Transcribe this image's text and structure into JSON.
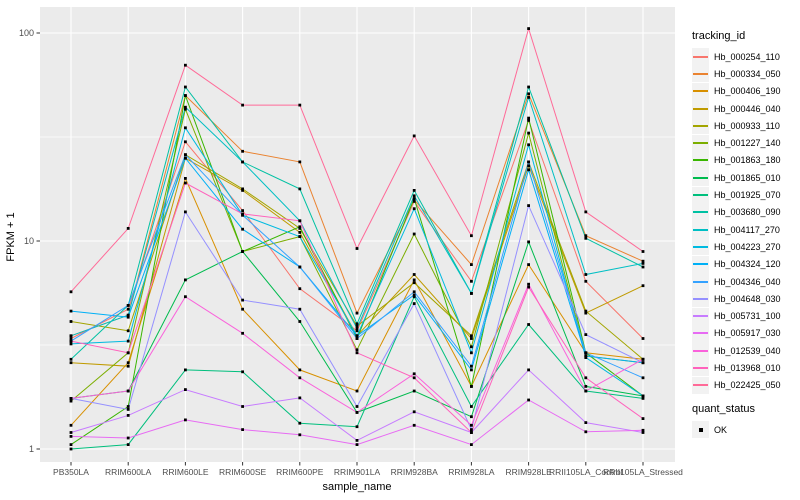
{
  "chart_data": {
    "type": "line",
    "title": "",
    "xlabel": "sample_name",
    "ylabel": "FPKM + 1",
    "y_scale": "log10",
    "y_ticks": [
      "1",
      "10",
      "100"
    ],
    "y_tick_values": [
      1,
      10,
      100
    ],
    "y_minor_values": [
      3.1623,
      31.623
    ],
    "ylim": [
      0.87,
      132
    ],
    "grid": true,
    "legend_position": "right",
    "legend_title": "tracking_id",
    "point_marker": {
      "shape": "square",
      "color": "#000000"
    },
    "quant_legend": {
      "title": "quant_status",
      "items": [
        {
          "label": "OK",
          "marker": "black-square"
        }
      ]
    },
    "colors": {
      "panel_bg": "#EBEBEB",
      "grid": "#FFFFFF",
      "tick_text": "#4D4D4D",
      "axis_text": "#000000",
      "legend_key_bg": "#F2F2F2",
      "tick_mark": "#333333"
    },
    "categories": [
      "PB350LA",
      "RRIM600LA",
      "RRIM600LE",
      "RRIM600SE",
      "RRIM600PE",
      "RRIM901LA",
      "RRIM928BA",
      "RRIM928LA",
      "RRIM928LE",
      "RRII105LA_Control",
      "RRII105LA_Stressed"
    ],
    "series": [
      {
        "name": "Hb_000254_110",
        "color": "#F8766D",
        "values": [
          3.4,
          4.7,
          30,
          14,
          5.9,
          3.7,
          15.5,
          6.4,
          38,
          6.4,
          3.4
        ]
      },
      {
        "name": "Hb_000334_050",
        "color": "#EA8331",
        "values": [
          3.5,
          4.4,
          50,
          27,
          24,
          4.5,
          15.8,
          7.7,
          51,
          10.6,
          8.0
        ]
      },
      {
        "name": "Hb_000406_190",
        "color": "#D89000",
        "values": [
          1.3,
          2.6,
          20,
          4.7,
          2.4,
          1.9,
          6.5,
          2.0,
          7.7,
          2.9,
          2.7
        ]
      },
      {
        "name": "Hb_000446_040",
        "color": "#C09B00",
        "values": [
          2.6,
          2.5,
          25,
          17.5,
          11,
          3.5,
          6.9,
          3.4,
          23,
          4.5,
          6.1
        ]
      },
      {
        "name": "Hb_000933_110",
        "color": "#A3A500",
        "values": [
          4.1,
          3.7,
          26,
          17.8,
          11.5,
          3.9,
          6.3,
          3.5,
          24,
          4.6,
          2.7
        ]
      },
      {
        "name": "Hb_001227_140",
        "color": "#7CAE00",
        "values": [
          1.7,
          2.9,
          43,
          8.9,
          10.5,
          3.0,
          10.8,
          3.1,
          33,
          2.8,
          2.6
        ]
      },
      {
        "name": "Hb_001863_180",
        "color": "#39B600",
        "values": [
          1.05,
          1.6,
          50,
          8.9,
          11.7,
          3.4,
          16,
          2.0,
          39,
          2.9,
          1.8
        ]
      },
      {
        "name": "Hb_001865_010",
        "color": "#00BB4E",
        "values": [
          1.75,
          1.9,
          6.5,
          8.9,
          4.1,
          1.5,
          1.9,
          1.43,
          9.9,
          2.0,
          1.8
        ]
      },
      {
        "name": "Hb_001925_070",
        "color": "#00BF7D",
        "values": [
          1.0,
          1.05,
          2.4,
          2.35,
          1.33,
          1.28,
          5.4,
          1.6,
          3.97,
          1.9,
          1.75
        ]
      },
      {
        "name": "Hb_003680_090",
        "color": "#00C1A3",
        "values": [
          2.7,
          4.9,
          55,
          24,
          17.8,
          4.0,
          17.5,
          5.6,
          55,
          10.3,
          7.5
        ]
      },
      {
        "name": "Hb_004117_270",
        "color": "#00BFC4",
        "values": [
          3.5,
          4.4,
          44,
          24,
          12.5,
          3.8,
          16.5,
          5.6,
          49,
          6.9,
          7.8
        ]
      },
      {
        "name": "Hb_004223_270",
        "color": "#00BAE0",
        "values": [
          3.2,
          3.3,
          35,
          13.3,
          10.5,
          3.5,
          14.3,
          2.9,
          29,
          2.75,
          1.8
        ]
      },
      {
        "name": "Hb_004324_120",
        "color": "#00B0F6",
        "values": [
          4.6,
          4.3,
          25,
          11.4,
          7.5,
          3.5,
          5.5,
          2.4,
          22,
          2.8,
          2.6
        ]
      },
      {
        "name": "Hb_004346_040",
        "color": "#35A2FF",
        "values": [
          3.3,
          4.9,
          26,
          13.3,
          7.5,
          3.4,
          5.7,
          2.5,
          24,
          2.9,
          2.2
        ]
      },
      {
        "name": "Hb_004648_030",
        "color": "#9590FF",
        "values": [
          1.75,
          1.55,
          13.8,
          5.2,
          4.7,
          1.6,
          5.0,
          1.24,
          14.8,
          3.55,
          2.6
        ]
      },
      {
        "name": "Hb_005731_100",
        "color": "#C77CFF",
        "values": [
          1.2,
          1.45,
          1.93,
          1.6,
          1.76,
          1.1,
          1.51,
          1.2,
          2.4,
          1.34,
          1.2
        ]
      },
      {
        "name": "Hb_005917_030",
        "color": "#E76BF3",
        "values": [
          1.15,
          1.13,
          1.38,
          1.24,
          1.17,
          1.05,
          1.3,
          1.05,
          1.72,
          1.21,
          1.23
        ]
      },
      {
        "name": "Hb_012539_040",
        "color": "#FA62DB",
        "values": [
          1.75,
          1.9,
          5.4,
          3.6,
          2.2,
          1.5,
          2.3,
          1.3,
          6.2,
          1.9,
          2.7
        ]
      },
      {
        "name": "Hb_013968_010",
        "color": "#FF62BC",
        "values": [
          3.3,
          2.9,
          19,
          13.5,
          12.5,
          2.9,
          2.2,
          1.2,
          6.0,
          2.2,
          1.4
        ]
      },
      {
        "name": "Hb_022425_050",
        "color": "#FF6A98",
        "values": [
          5.7,
          11.5,
          70,
          45,
          45,
          9.2,
          32,
          10.6,
          105,
          13.8,
          8.9
        ]
      }
    ]
  }
}
